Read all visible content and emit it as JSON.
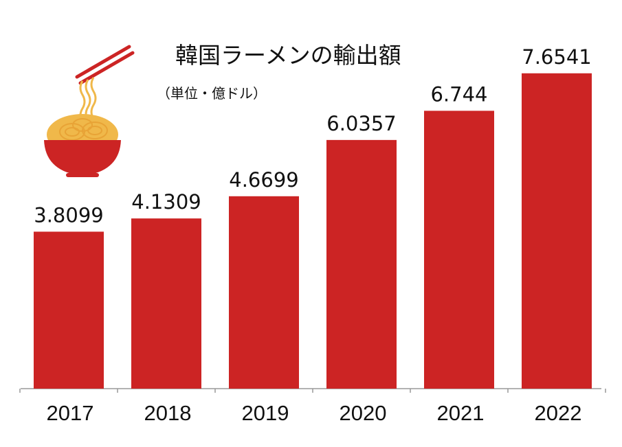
{
  "chart_data": {
    "type": "bar",
    "title": "韓国ラーメンの輸出額",
    "unit_label": "（単位・億ドル）",
    "categories": [
      "2017",
      "2018",
      "2019",
      "2020",
      "2021",
      "2022"
    ],
    "values": [
      3.8099,
      4.1309,
      4.6699,
      6.0357,
      6.744,
      7.6541
    ],
    "value_labels": [
      "3.8099",
      "4.1309",
      "4.6699",
      "6.0357",
      "6.744",
      "7.6541"
    ],
    "ylim": [
      0,
      8.4
    ],
    "grid": false,
    "legend": "none",
    "bar_color": "#cc2424",
    "axis_color": "#999999"
  },
  "decoration": {
    "icon": "ramen-bowl-icon",
    "bowl_color": "#cc2424",
    "noodle_color": "#f0b84a"
  }
}
